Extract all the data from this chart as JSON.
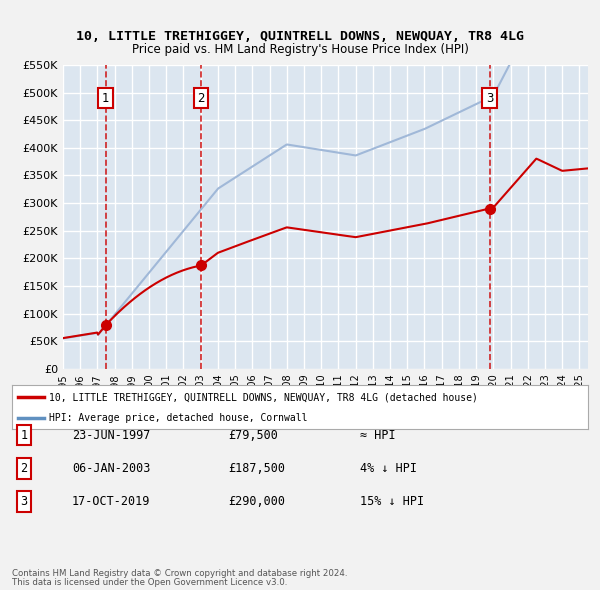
{
  "title": "10, LITTLE TRETHIGGEY, QUINTRELL DOWNS, NEWQUAY, TR8 4LG",
  "subtitle": "Price paid vs. HM Land Registry's House Price Index (HPI)",
  "legend_line1": "10, LITTLE TRETHIGGEY, QUINTRELL DOWNS, NEWQUAY, TR8 4LG (detached house)",
  "legend_line2": "HPI: Average price, detached house, Cornwall",
  "footer1": "Contains HM Land Registry data © Crown copyright and database right 2024.",
  "footer2": "This data is licensed under the Open Government Licence v3.0.",
  "ylim": [
    0,
    550000
  ],
  "yticks": [
    0,
    50000,
    100000,
    150000,
    200000,
    250000,
    300000,
    350000,
    400000,
    450000,
    500000,
    550000
  ],
  "ytick_labels": [
    "£0",
    "£50K",
    "£100K",
    "£150K",
    "£200K",
    "£250K",
    "£300K",
    "£350K",
    "£400K",
    "£450K",
    "£500K",
    "£550K"
  ],
  "xlim_start": 1995.0,
  "xlim_end": 2025.5,
  "sale_points": [
    {
      "num": 1,
      "year": 1997.47,
      "price": 79500,
      "date": "23-JUN-1997",
      "label": "≈ HPI"
    },
    {
      "num": 2,
      "year": 2003.02,
      "price": 187500,
      "date": "06-JAN-2003",
      "label": "4% ↓ HPI"
    },
    {
      "num": 3,
      "year": 2019.79,
      "price": 290000,
      "date": "17-OCT-2019",
      "label": "15% ↓ HPI"
    }
  ],
  "property_color": "#cc0000",
  "hpi_color": "#a0b8d8",
  "hpi_color_dark": "#6090c0",
  "plot_bg": "#dce6f0",
  "grid_color": "#ffffff",
  "vline_color": "#cc0000",
  "table_rows": [
    {
      "num": "1",
      "date": "23-JUN-1997",
      "price": "£79,500",
      "relation": "≈ HPI"
    },
    {
      "num": "2",
      "date": "06-JAN-2003",
      "price": "£187,500",
      "relation": "4% ↓ HPI"
    },
    {
      "num": "3",
      "date": "17-OCT-2019",
      "price": "£290,000",
      "relation": "15% ↓ HPI"
    }
  ]
}
